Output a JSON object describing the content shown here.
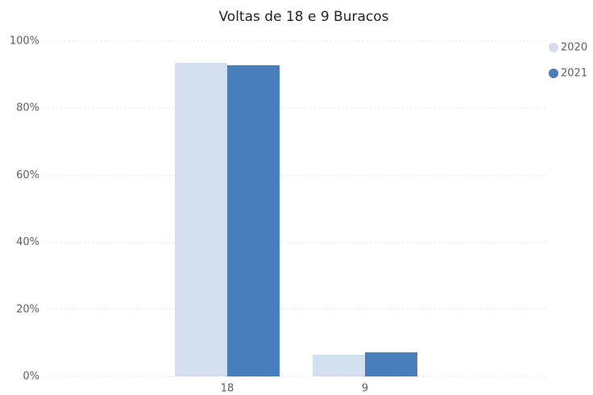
{
  "chart_data": {
    "type": "bar",
    "title": "Voltas de 18 e 9 Buracos",
    "categories": [
      "18",
      "9"
    ],
    "series": [
      {
        "name": "2020",
        "color": "#d3deef",
        "values": [
          93.5,
          6.5
        ]
      },
      {
        "name": "2021",
        "color": "#4a7ebb",
        "values": [
          92.8,
          7.2
        ]
      }
    ],
    "ylim": [
      0,
      100
    ],
    "yticks": [
      {
        "value": 0,
        "label": "0%"
      },
      {
        "value": 20,
        "label": "20%"
      },
      {
        "value": 40,
        "label": "40%"
      },
      {
        "value": 60,
        "label": "60%"
      },
      {
        "value": 80,
        "label": "80%"
      },
      {
        "value": 100,
        "label": "100%"
      }
    ],
    "grid": true,
    "legend": "top-right"
  }
}
